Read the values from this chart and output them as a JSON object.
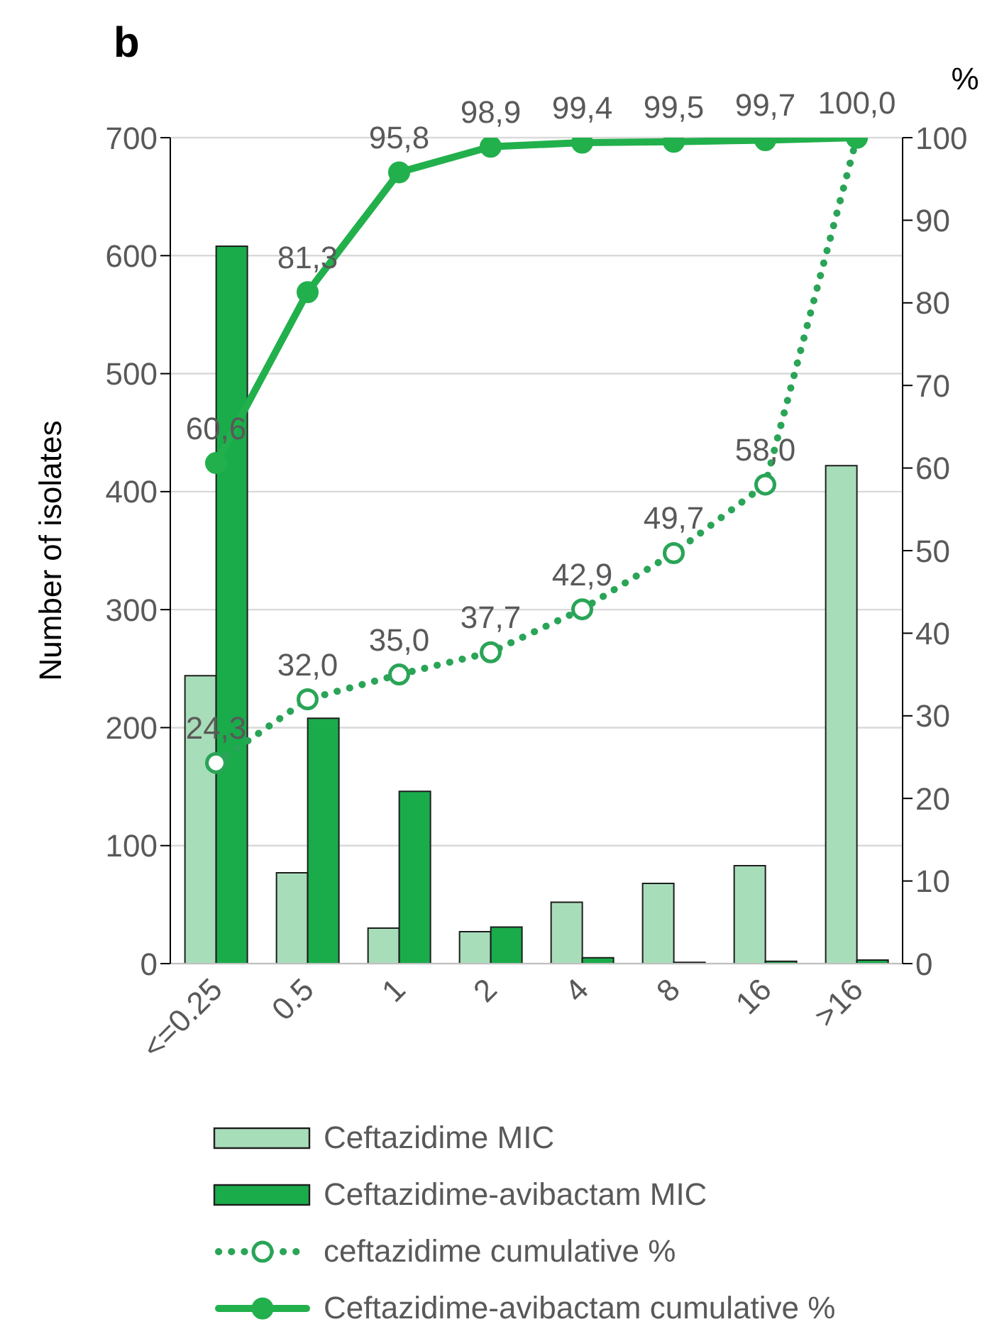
{
  "chart_data": {
    "type": "bar",
    "title": "b",
    "ylabel": "Number of isolates",
    "y2label": "%",
    "categories": [
      "<=0.25",
      "0.5",
      "1",
      "2",
      "4",
      "8",
      "16",
      ">16"
    ],
    "series": [
      {
        "name": "Ceftazidime MIC",
        "color": "#a8ddb9",
        "values": [
          244,
          77,
          30,
          27,
          52,
          68,
          83,
          422
        ]
      },
      {
        "name": "Ceftazidime-avibactam MIC",
        "color": "#1aab4b",
        "values": [
          608,
          208,
          146,
          31,
          5,
          1,
          2,
          3
        ]
      },
      {
        "name": "ceftazidime cumulative %",
        "type": "line",
        "axis": "y2",
        "color": "#2aa457",
        "line_style": "dotted",
        "marker": "circle",
        "values": [
          24.3,
          32.0,
          35.0,
          37.7,
          42.9,
          49.7,
          58.0,
          100.0
        ],
        "value_labels": [
          "24,3",
          "32,0",
          "35,0",
          "37,7",
          "42,9",
          "49,7",
          "58,0",
          null
        ]
      },
      {
        "name": "Ceftazidime-avibactam cumulative %",
        "type": "line",
        "axis": "y2",
        "color": "#22b04c",
        "line_style": "solid",
        "marker": "circle",
        "values": [
          60.6,
          81.3,
          95.8,
          98.9,
          99.4,
          99.5,
          99.7,
          100.0
        ],
        "value_labels": [
          "60,6",
          "81,3",
          "95,8",
          "98,9",
          "99,4",
          "99,5",
          "99,7",
          "100,0"
        ]
      }
    ],
    "ylim": [
      0,
      700
    ],
    "yticks": [
      0,
      100,
      200,
      300,
      400,
      500,
      600,
      700
    ],
    "y2lim": [
      0,
      100
    ],
    "y2ticks": [
      0,
      10,
      20,
      30,
      40,
      50,
      60,
      70,
      80,
      90,
      100
    ],
    "grid": "y",
    "legend": "bottom"
  }
}
